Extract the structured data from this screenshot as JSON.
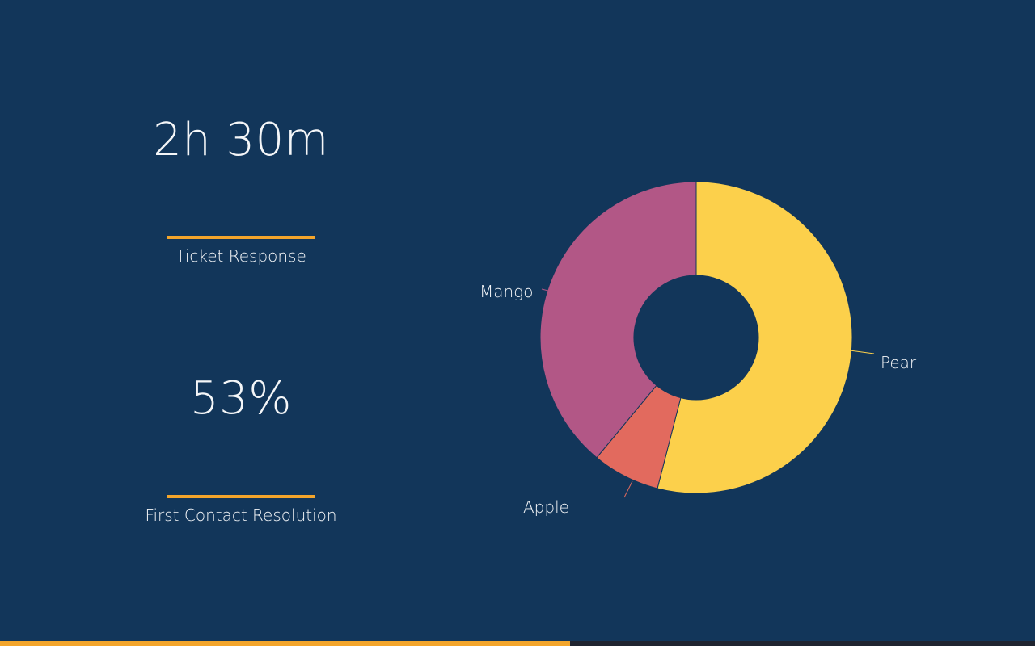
{
  "kpis": [
    {
      "value": "2h 30m",
      "label": "Ticket Response"
    },
    {
      "value": "53%",
      "label": "First Contact Resolution"
    }
  ],
  "chart_data": {
    "type": "pie",
    "donut": true,
    "slices": [
      {
        "label": "Pear",
        "value": 54,
        "color": "#fcd04b"
      },
      {
        "label": "Apple",
        "value": 7,
        "color": "#e26a5e"
      },
      {
        "label": "Mango",
        "value": 39,
        "color": "#b25786"
      }
    ]
  },
  "progress": {
    "fraction": 0.551,
    "fill_color": "#f3a52b",
    "track_color": "#1f2430"
  },
  "colors": {
    "background": "#12365a",
    "accent": "#f3a52b"
  }
}
